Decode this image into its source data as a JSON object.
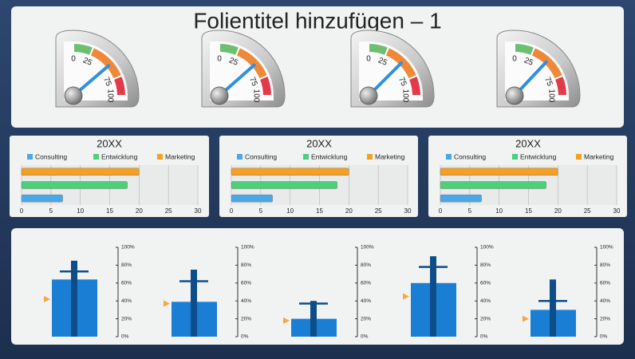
{
  "title": "Folientitel hinzufügen – 1",
  "chart_data": [
    {
      "type": "gauge",
      "value": 55,
      "ylim": [
        0,
        100
      ],
      "yticks": [
        0,
        25,
        75,
        100
      ],
      "colors": [
        "#6cc070",
        "#f0883a",
        "#e23a48"
      ],
      "needle_color": "#2f8fe0"
    },
    {
      "type": "gauge",
      "value": 54,
      "ylim": [
        0,
        100
      ],
      "yticks": [
        0,
        25,
        75,
        100
      ],
      "colors": [
        "#6cc070",
        "#f0883a",
        "#e23a48"
      ],
      "needle_color": "#2f8fe0"
    },
    {
      "type": "gauge",
      "value": 50,
      "ylim": [
        0,
        100
      ],
      "yticks": [
        0,
        25,
        75,
        100
      ],
      "colors": [
        "#6cc070",
        "#f0883a",
        "#e23a48"
      ],
      "needle_color": "#2f8fe0"
    },
    {
      "type": "gauge",
      "value": 48,
      "ylim": [
        0,
        100
      ],
      "yticks": [
        0,
        25,
        75,
        100
      ],
      "colors": [
        "#6cc070",
        "#f0883a",
        "#e23a48"
      ],
      "needle_color": "#2f8fe0"
    },
    {
      "type": "bar",
      "orientation": "horizontal",
      "title": "20XX",
      "categories": [
        "Consulting",
        "Entwicklung",
        "Marketing"
      ],
      "values": [
        7,
        18,
        20
      ],
      "colors": [
        "#4aa8e8",
        "#4cd07a",
        "#f5a024"
      ],
      "xlim": [
        0,
        30
      ],
      "xticks": [
        0,
        5,
        10,
        15,
        20,
        25,
        30
      ],
      "grid": true,
      "legend": "top"
    },
    {
      "type": "bar",
      "orientation": "horizontal",
      "title": "20XX",
      "categories": [
        "Consulting",
        "Entwicklung",
        "Marketing"
      ],
      "values": [
        7,
        18,
        20
      ],
      "colors": [
        "#4aa8e8",
        "#4cd07a",
        "#f5a024"
      ],
      "xlim": [
        0,
        30
      ],
      "xticks": [
        0,
        5,
        10,
        15,
        20,
        25,
        30
      ],
      "grid": true,
      "legend": "top"
    },
    {
      "type": "bar",
      "orientation": "horizontal",
      "title": "20XX",
      "categories": [
        "Consulting",
        "Entwicklung",
        "Marketing"
      ],
      "values": [
        7,
        18,
        20
      ],
      "colors": [
        "#4aa8e8",
        "#4cd07a",
        "#f5a024"
      ],
      "xlim": [
        0,
        30
      ],
      "xticks": [
        0,
        5,
        10,
        15,
        20,
        25,
        30
      ],
      "grid": true,
      "legend": "top"
    },
    {
      "type": "bullet",
      "value": 64,
      "range": 85,
      "target": 73,
      "marker": 42,
      "ylim": [
        0,
        100
      ],
      "yticks": [
        {
          "value": 0,
          "label": "0%"
        },
        {
          "value": 20,
          "label": "20%"
        },
        {
          "value": 40,
          "label": "40%"
        },
        {
          "value": 60,
          "label": "60%"
        },
        {
          "value": 80,
          "label": "80%"
        },
        {
          "value": 100,
          "label": "100%"
        }
      ],
      "color": "#1a7fd4",
      "range_color": "#0d4d8a",
      "marker_color": "#f5a742"
    },
    {
      "type": "bullet",
      "value": 39,
      "range": 75,
      "target": 62,
      "marker": 37,
      "ylim": [
        0,
        100
      ],
      "yticks": [
        {
          "value": 0,
          "label": "0%"
        },
        {
          "value": 20,
          "label": "20%"
        },
        {
          "value": 40,
          "label": "40%"
        },
        {
          "value": 60,
          "label": "60%"
        },
        {
          "value": 80,
          "label": "80%"
        },
        {
          "value": 100,
          "label": "100%"
        }
      ],
      "color": "#1a7fd4",
      "range_color": "#0d4d8a",
      "marker_color": "#f5a742"
    },
    {
      "type": "bullet",
      "value": 20,
      "range": 40,
      "target": 37,
      "marker": 18,
      "ylim": [
        0,
        100
      ],
      "yticks": [
        {
          "value": 0,
          "label": "0%"
        },
        {
          "value": 20,
          "label": "20%"
        },
        {
          "value": 40,
          "label": "40%"
        },
        {
          "value": 60,
          "label": "60%"
        },
        {
          "value": 80,
          "label": "80%"
        },
        {
          "value": 100,
          "label": "100%"
        }
      ],
      "color": "#1a7fd4",
      "range_color": "#0d4d8a",
      "marker_color": "#f5a742"
    },
    {
      "type": "bullet",
      "value": 60,
      "range": 90,
      "target": 78,
      "marker": 45,
      "ylim": [
        0,
        100
      ],
      "yticks": [
        {
          "value": 0,
          "label": "0%"
        },
        {
          "value": 20,
          "label": "20%"
        },
        {
          "value": 40,
          "label": "40%"
        },
        {
          "value": 60,
          "label": "60%"
        },
        {
          "value": 80,
          "label": "80%"
        },
        {
          "value": 100,
          "label": "100%"
        }
      ],
      "color": "#1a7fd4",
      "range_color": "#0d4d8a",
      "marker_color": "#f5a742"
    },
    {
      "type": "bullet",
      "value": 30,
      "range": 64,
      "target": 40,
      "marker": 20,
      "ylim": [
        0,
        100
      ],
      "yticks": [
        {
          "value": 0,
          "label": "0%"
        },
        {
          "value": 20,
          "label": "20%"
        },
        {
          "value": 40,
          "label": "40%"
        },
        {
          "value": 60,
          "label": "60%"
        },
        {
          "value": 80,
          "label": "80%"
        },
        {
          "value": 100,
          "label": "100%"
        }
      ],
      "color": "#1a7fd4",
      "range_color": "#0d4d8a",
      "marker_color": "#f5a742"
    }
  ]
}
